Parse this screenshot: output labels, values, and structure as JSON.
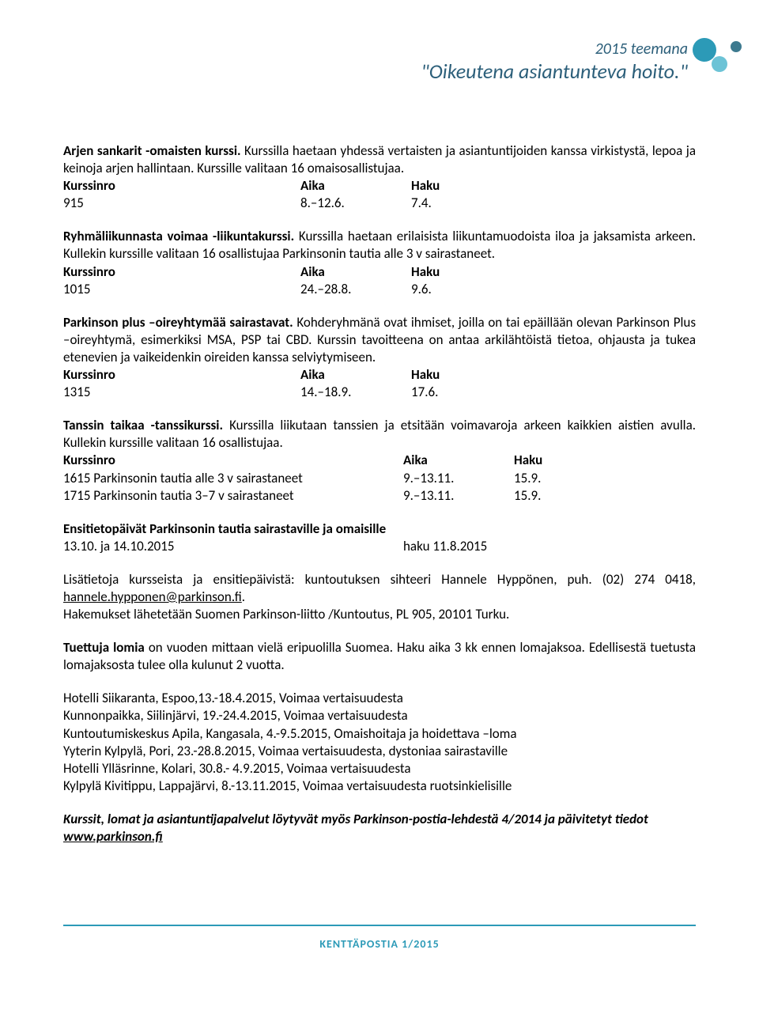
{
  "banner": {
    "line1": "2015 teemana",
    "line2": "\"Oikeutena asiantunteva hoito.\""
  },
  "sec1": {
    "title": "Arjen sankarit -omaisten kurssi.",
    "desc": " Kurssilla haetaan yhdessä vertaisten ja asiantuntijoiden kanssa virkistystä, lepoa ja keinoja arjen hallintaan. Kurssille valitaan 16 omaisosallistujaa.",
    "h1": "Kurssinro",
    "h2": "Aika",
    "h3": "Haku",
    "v1": "915",
    "v2": "8.–12.6.",
    "v3": "7.4."
  },
  "sec2": {
    "title": "Ryhmäliikunnasta voimaa -liikuntakurssi.",
    "desc": " Kurssilla haetaan erilaisista liikuntamuodoista iloa ja jaksamista arkeen. Kullekin kurssille valitaan 16 osallistujaa Parkinsonin tautia alle 3 v sairastaneet.",
    "h1": "Kurssinro",
    "h2": "Aika",
    "h3": "Haku",
    "v1": "1015",
    "v2": "24.–28.8.",
    "v3": "9.6."
  },
  "sec3": {
    "title": "Parkinson plus –oireyhtymää sairastavat.",
    "desc": " Kohderyhmänä ovat ihmiset, joilla on tai epäillään olevan Parkinson Plus –oireyhtymä, esimerkiksi MSA, PSP tai CBD. Kurssin tavoitteena on antaa arkilähtöistä tietoa, ohjausta ja tukea etenevien ja vaikeidenkin oireiden kanssa selviytymiseen.",
    "h1": "Kurssinro",
    "h2": "Aika",
    "h3": "Haku",
    "v1": "1315",
    "v2": "14.–18.9.",
    "v3": "17.6."
  },
  "sec4": {
    "title": "Tanssin taikaa -tanssikurssi.",
    "desc": " Kurssilla liikutaan tanssien ja etsitään voimavaroja arkeen kaikkien aistien avulla. Kullekin kurssille valitaan 16 osallistujaa.",
    "h1": "Kurssinro",
    "h2": "Aika",
    "h3": "Haku",
    "r1c1": "1615 Parkinsonin tautia alle 3 v sairastaneet",
    "r1c2": "9.–13.11.",
    "r1c3": "15.9.",
    "r2c1": "1715 Parkinsonin tautia 3–7 v sairastaneet",
    "r2c2": "9.–13.11.",
    "r2c3": "15.9."
  },
  "sec5": {
    "title": "Ensitietopäivät Parkinsonin tautia sairastaville ja omaisille",
    "c1": "13.10. ja 14.10.2015",
    "c2": "haku 11.8.2015"
  },
  "info": {
    "line1a": "Lisätietoja kursseista ja ensitiepäivistä: kuntoutuksen sihteeri Hannele Hyppönen, puh. (02) 274 0418, ",
    "email": "hannele.hypponen@parkinson.fi",
    "line2": "Hakemukset lähetetään Suomen Parkinson-liitto /Kuntoutus, PL 905, 20101 Turku."
  },
  "lomat": {
    "title": "Tuettuja lomia",
    "rest": " on vuoden mittaan vielä eripuolilla Suomea. Haku aika 3 kk ennen lomajaksoa. Edellisestä tuetusta lomajaksosta tulee olla kulunut 2 vuotta.",
    "l1": "Hotelli Siikaranta, Espoo,13.-18.4.2015, Voimaa vertaisuudesta",
    "l2": "Kunnonpaikka, Siilinjärvi, 19.-24.4.2015, Voimaa vertaisuudesta",
    "l3": "Kuntoutumiskeskus Apila, Kangasala, 4.-9.5.2015, Omaishoitaja ja hoidettava –loma",
    "l4": "Yyterin Kylpylä, Pori, 23.-28.8.2015, Voimaa vertaisuudesta, dystoniaa sairastaville",
    "l5": "Hotelli Ylläsrinne, Kolari, 30.8.- 4.9.2015, Voimaa vertaisuudesta",
    "l6": "Kylpylä Kivitippu, Lappajärvi, 8.-13.11.2015, Voimaa vertaisuudesta ruotsinkielisille"
  },
  "closing": {
    "text": "Kurssit, lomat ja asiantuntijapalvelut löytyvät myös Parkinson-postia-lehdestä 4/2014 ja päivitetyt tiedot ",
    "link": "www.parkinson.fi"
  },
  "footer": "KENTTÄPOSTIA 1/2015",
  "colors": {
    "accent": "#2c9ab7",
    "headerText": "#2c5f7a"
  }
}
